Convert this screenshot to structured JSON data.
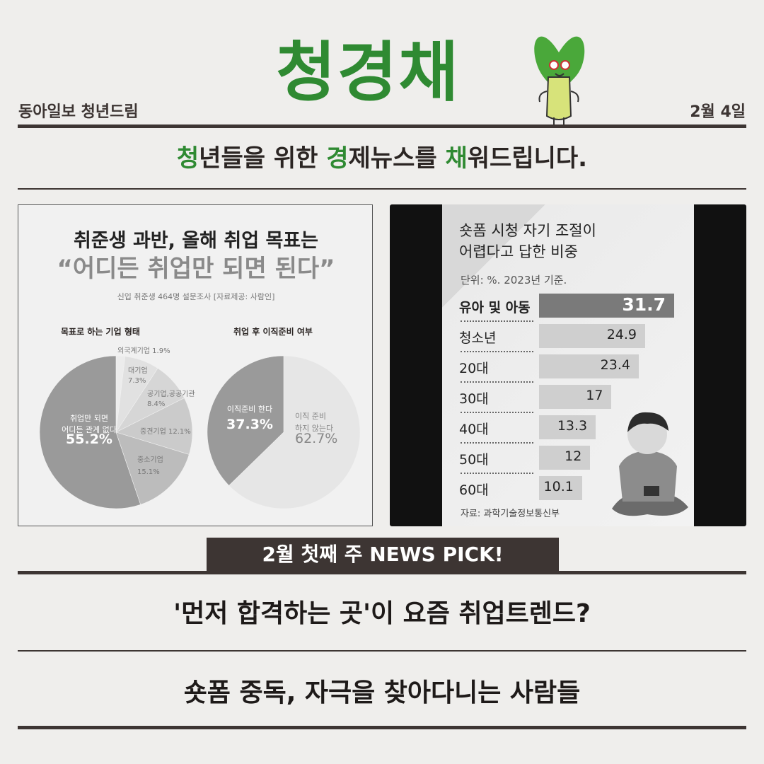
{
  "header": {
    "brand": "청경채",
    "publisher": "동아일보 청년드림",
    "date": "2월 4일",
    "tagline_parts": [
      {
        "t": "청",
        "g": true
      },
      {
        "t": "년들을 위한 ",
        "g": false
      },
      {
        "t": "경",
        "g": true
      },
      {
        "t": "제뉴스를 ",
        "g": false
      },
      {
        "t": "채",
        "g": true
      },
      {
        "t": "워드립니다.",
        "g": false
      }
    ],
    "brand_color": "#2f8a32",
    "line_color": "#3d3533"
  },
  "left_card": {
    "title": "취준생 과반, 올해 취업 목표는",
    "quote": "“어디든 취업만 되면 된다”",
    "source": "신입 취준생 464명 설문조사 [자료제공: 사람인]",
    "pie1": {
      "title": "목표로 하는 기업 형태",
      "slices": [
        {
          "label": "외국계기업",
          "value": 1.9,
          "text": "1.9%",
          "color": "#ececec"
        },
        {
          "label": "대기업",
          "value": 7.3,
          "text": "7.3%",
          "color": "#e1e1e1"
        },
        {
          "label": "공기업,공공기관",
          "value": 8.4,
          "text": "8.4%",
          "color": "#d6d6d6"
        },
        {
          "label": "중견기업",
          "value": 12.1,
          "text": "12.1%",
          "color": "#cbcbcb"
        },
        {
          "label": "중소기업",
          "value": 15.1,
          "text": "15.1%",
          "color": "#bcbcbc"
        },
        {
          "label": "취업만 되면 어디든 관계 없다",
          "value": 55.2,
          "text": "55.2%",
          "color": "#9a9a9a"
        }
      ]
    },
    "pie2": {
      "title": "취업 후 이직준비 여부",
      "slices": [
        {
          "label": "이직 준비 하지 않는다",
          "value": 62.7,
          "text": "62.7%",
          "color": "#e6e6e6"
        },
        {
          "label": "이직준비 한다",
          "value": 37.3,
          "text": "37.3%",
          "color": "#9a9a9a"
        }
      ]
    }
  },
  "right_card": {
    "title_line1": "숏폼 시청 자기 조절이",
    "title_line2": "어렵다고 답한 비중",
    "unit": "단위: %. 2023년 기준.",
    "source": "자료: 과학기술정보통신부",
    "chart_data": {
      "type": "bar",
      "orientation": "horizontal",
      "unit": "%",
      "categories": [
        "유아 및 아동",
        "청소년",
        "20대",
        "30대",
        "40대",
        "50대",
        "60대"
      ],
      "values": [
        31.7,
        24.9,
        23.4,
        17,
        13.3,
        12,
        10.1
      ],
      "value_labels": [
        "31.7",
        "24.9",
        "23.4",
        "17",
        "13.3",
        "12",
        "10.1"
      ],
      "highlight": "유아 및 아동"
    }
  },
  "news": {
    "banner": "2월 첫째 주 NEWS PICK!",
    "headlines": [
      "'먼저 합격하는 곳'이 요즘 취업트렌드?",
      "숏폼 중독, 자극을 찾아다니는 사람들"
    ]
  }
}
